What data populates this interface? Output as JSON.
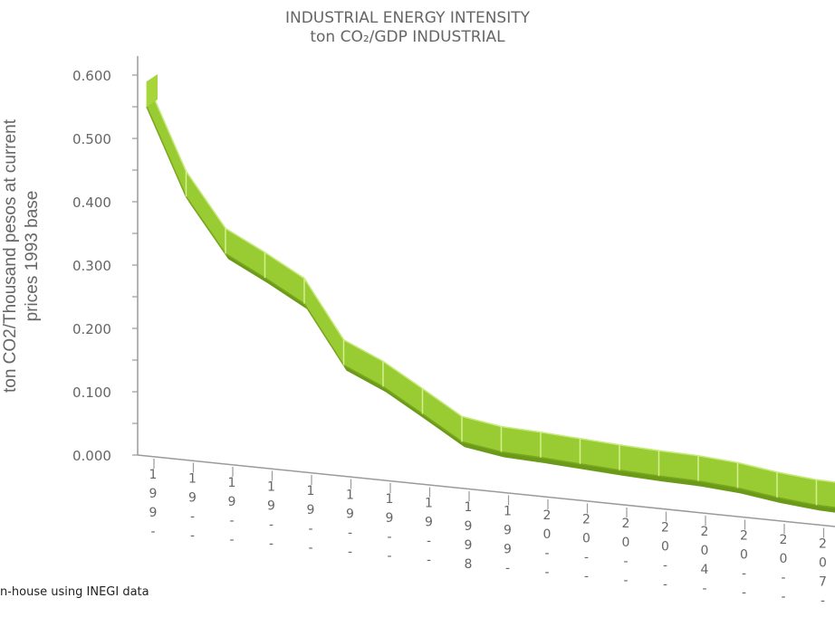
{
  "chart_data": {
    "type": "line",
    "title_line1": "INDUSTRIAL ENERGY INTENSITY",
    "title_line2": "ton CO₂/GDP INDUSTRIAL",
    "ylabel_line1": "ton CO2/Thousand pesos at  current",
    "ylabel_line2": "prices 1993 base",
    "y_ticks": [
      "0.600",
      "0.500",
      "0.400",
      "0.300",
      "0.200",
      "0.100",
      "0.000"
    ],
    "ylim": [
      0,
      0.6
    ],
    "x_tick_labels": [
      [
        "1",
        "9",
        "9",
        "-"
      ],
      [
        "1",
        "9",
        "-",
        "-"
      ],
      [
        "1",
        "9",
        "-",
        "-"
      ],
      [
        "1",
        "9",
        "-",
        "-"
      ],
      [
        "1",
        "9",
        "-",
        "-"
      ],
      [
        "1",
        "9",
        "-",
        "-"
      ],
      [
        "1",
        "9",
        "-",
        "-"
      ],
      [
        "1",
        "9",
        "-",
        "-"
      ],
      [
        "1",
        "9",
        "9",
        "8"
      ],
      [
        "1",
        "9",
        "9",
        "-"
      ],
      [
        "2",
        "0",
        "-",
        "-"
      ],
      [
        "2",
        "0",
        "-",
        "-"
      ],
      [
        "2",
        "0",
        "-",
        "-"
      ],
      [
        "2",
        "0",
        "-",
        "-"
      ],
      [
        "2",
        "0",
        "4",
        "-"
      ],
      [
        "2",
        "0",
        "-",
        "-"
      ],
      [
        "2",
        "0",
        "-",
        "-"
      ],
      [
        "2",
        "0",
        "7",
        "-"
      ]
    ],
    "values": [
      0.59,
      0.448,
      0.358,
      0.32,
      0.279,
      0.182,
      0.148,
      0.105,
      0.061,
      0.045,
      0.036,
      0.026,
      0.016,
      0.007,
      -0.001,
      -0.012,
      -0.027,
      -0.039
    ],
    "color": "#99cc33",
    "edge_color": "#7aa61e",
    "shadow_color": "#6a9a18",
    "grid": false
  },
  "source_text": "n-house using INEGI data"
}
